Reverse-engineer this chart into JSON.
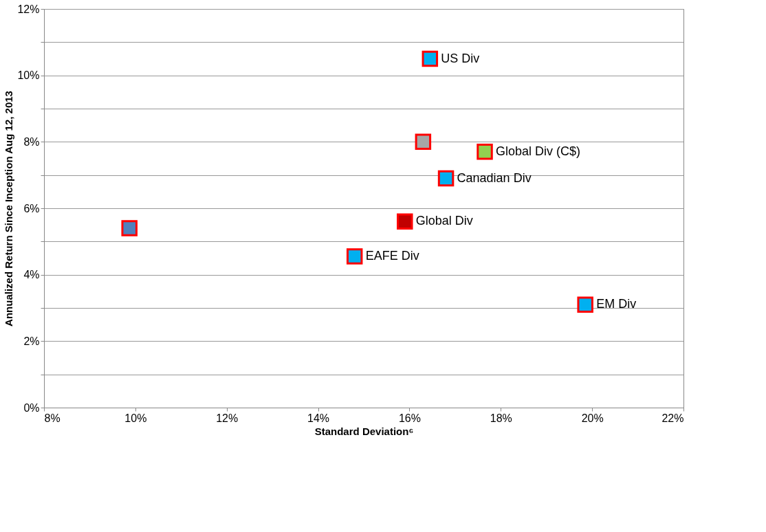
{
  "chart_data": {
    "type": "scatter",
    "xlabel": "Standard Deviation⁶",
    "ylabel": "Annualized Return Since Inception Aug 12, 2013",
    "xlim": [
      8,
      22
    ],
    "ylim": [
      0,
      12
    ],
    "xticks": [
      {
        "value": 8,
        "label": "8%"
      },
      {
        "value": 10,
        "label": "10%"
      },
      {
        "value": 12,
        "label": "12%"
      },
      {
        "value": 14,
        "label": "14%"
      },
      {
        "value": 16,
        "label": "16%"
      },
      {
        "value": 18,
        "label": "18%"
      },
      {
        "value": 20,
        "label": "20%"
      },
      {
        "value": 22,
        "label": "22%"
      }
    ],
    "yticks": [
      {
        "value": 0,
        "label": "0%"
      },
      {
        "value": 1,
        "label": null
      },
      {
        "value": 2,
        "label": "2%"
      },
      {
        "value": 3,
        "label": null
      },
      {
        "value": 4,
        "label": "4%"
      },
      {
        "value": 5,
        "label": null
      },
      {
        "value": 6,
        "label": "6%"
      },
      {
        "value": 7,
        "label": null
      },
      {
        "value": 8,
        "label": "8%"
      },
      {
        "value": 9,
        "label": null
      },
      {
        "value": 10,
        "label": "10%"
      },
      {
        "value": 11,
        "label": null
      },
      {
        "value": 12,
        "label": "12%"
      }
    ],
    "grid": "y",
    "legend": false,
    "marker": "square",
    "series": [
      {
        "name": "US Div",
        "color": "#00b0f0",
        "x": [
          16.45
        ],
        "values": [
          10.5
        ]
      },
      {
        "color": "#a6a6a6",
        "x": [
          16.3
        ],
        "values": [
          8.0
        ]
      },
      {
        "name": "Global Div (C$)",
        "color": "#92d050",
        "x": [
          17.65
        ],
        "values": [
          7.7
        ]
      },
      {
        "name": "Canadian Div",
        "color": "#00b0f0",
        "x": [
          16.8
        ],
        "values": [
          6.9
        ]
      },
      {
        "name": "Global Div",
        "color": "#c00000",
        "x": [
          15.9
        ],
        "values": [
          5.6
        ]
      },
      {
        "name": "EAFE Div",
        "color": "#00b0f0",
        "x": [
          14.8
        ],
        "values": [
          4.55
        ]
      },
      {
        "name": "EM Div",
        "color": "#00b0f0",
        "x": [
          19.85
        ],
        "values": [
          3.1
        ]
      },
      {
        "color": "#4f81bd",
        "x": [
          9.87
        ],
        "values": [
          5.4
        ]
      }
    ]
  }
}
